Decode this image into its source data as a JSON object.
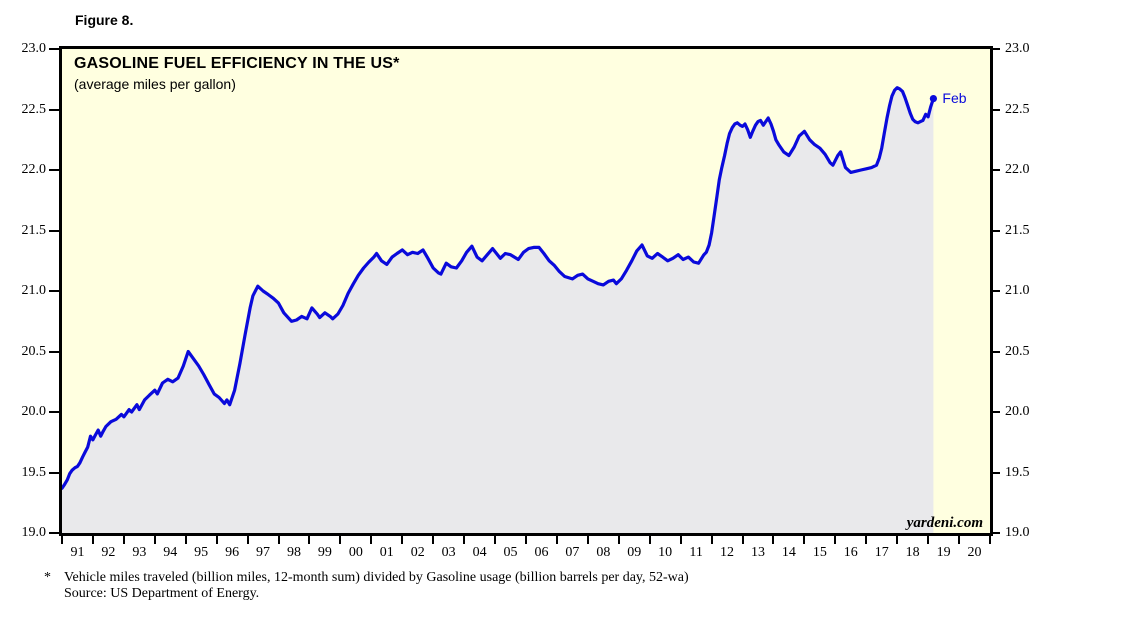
{
  "page": {
    "figure_label": "Figure 8."
  },
  "chart_data": {
    "type": "area",
    "title": "GASOLINE FUEL EFFICIENCY IN THE US*",
    "subtitle": "(average miles per gallon)",
    "watermark": "yardeni.com",
    "end_label": "Feb",
    "grid": false,
    "legend_position": "none",
    "xlabel": "",
    "ylabel": "",
    "ylim": [
      19.0,
      23.0
    ],
    "xlim": [
      1991,
      2021
    ],
    "ytick_values": [
      23.0,
      22.5,
      22.0,
      21.5,
      21.0,
      20.5,
      20.0,
      19.5,
      19.0
    ],
    "ytick_labels": [
      "23.0",
      "22.5",
      "22.0",
      "21.5",
      "21.0",
      "20.5",
      "20.0",
      "19.5",
      "19.0"
    ],
    "xtick_labels": [
      "91",
      "92",
      "93",
      "94",
      "95",
      "96",
      "97",
      "98",
      "99",
      "00",
      "01",
      "02",
      "03",
      "04",
      "05",
      "06",
      "07",
      "08",
      "09",
      "10",
      "11",
      "12",
      "13",
      "14",
      "15",
      "16",
      "17",
      "18",
      "19",
      "20"
    ],
    "colors": {
      "line": "#0a0adb",
      "fill": "#e9e9eb",
      "plot_bg": "#FFFFE0",
      "axis": "#000000",
      "end_label": "#0a0adb"
    },
    "series": [
      {
        "name": "Gasoline fuel efficiency (average miles per gallon)",
        "points": [
          [
            1991.0,
            19.37
          ],
          [
            1991.08,
            19.4
          ],
          [
            1991.17,
            19.44
          ],
          [
            1991.25,
            19.49
          ],
          [
            1991.33,
            19.52
          ],
          [
            1991.42,
            19.54
          ],
          [
            1991.5,
            19.55
          ],
          [
            1991.58,
            19.58
          ],
          [
            1991.67,
            19.63
          ],
          [
            1991.75,
            19.67
          ],
          [
            1991.83,
            19.71
          ],
          [
            1991.92,
            19.8
          ],
          [
            1992.0,
            19.77
          ],
          [
            1992.08,
            19.81
          ],
          [
            1992.17,
            19.85
          ],
          [
            1992.25,
            19.8
          ],
          [
            1992.33,
            19.84
          ],
          [
            1992.42,
            19.88
          ],
          [
            1992.58,
            19.92
          ],
          [
            1992.75,
            19.94
          ],
          [
            1992.92,
            19.98
          ],
          [
            1993.0,
            19.96
          ],
          [
            1993.17,
            20.02
          ],
          [
            1993.25,
            20.0
          ],
          [
            1993.42,
            20.06
          ],
          [
            1993.5,
            20.02
          ],
          [
            1993.67,
            20.1
          ],
          [
            1993.83,
            20.14
          ],
          [
            1994.0,
            20.18
          ],
          [
            1994.08,
            20.15
          ],
          [
            1994.25,
            20.24
          ],
          [
            1994.42,
            20.27
          ],
          [
            1994.58,
            20.25
          ],
          [
            1994.75,
            20.28
          ],
          [
            1994.92,
            20.38
          ],
          [
            1995.08,
            20.5
          ],
          [
            1995.25,
            20.44
          ],
          [
            1995.42,
            20.38
          ],
          [
            1995.58,
            20.31
          ],
          [
            1995.75,
            20.23
          ],
          [
            1995.92,
            20.15
          ],
          [
            1996.08,
            20.12
          ],
          [
            1996.25,
            20.07
          ],
          [
            1996.33,
            20.1
          ],
          [
            1996.42,
            20.06
          ],
          [
            1996.58,
            20.18
          ],
          [
            1996.75,
            20.4
          ],
          [
            1996.92,
            20.64
          ],
          [
            1997.08,
            20.86
          ],
          [
            1997.17,
            20.96
          ],
          [
            1997.33,
            21.04
          ],
          [
            1997.5,
            21.0
          ],
          [
            1997.67,
            20.97
          ],
          [
            1997.83,
            20.94
          ],
          [
            1998.0,
            20.9
          ],
          [
            1998.17,
            20.82
          ],
          [
            1998.42,
            20.75
          ],
          [
            1998.58,
            20.76
          ],
          [
            1998.75,
            20.79
          ],
          [
            1998.92,
            20.77
          ],
          [
            1999.08,
            20.86
          ],
          [
            1999.25,
            20.81
          ],
          [
            1999.33,
            20.78
          ],
          [
            1999.5,
            20.82
          ],
          [
            1999.67,
            20.79
          ],
          [
            1999.75,
            20.77
          ],
          [
            1999.92,
            20.81
          ],
          [
            2000.08,
            20.88
          ],
          [
            2000.25,
            20.98
          ],
          [
            2000.42,
            21.06
          ],
          [
            2000.58,
            21.13
          ],
          [
            2000.75,
            21.19
          ],
          [
            2000.92,
            21.24
          ],
          [
            2001.08,
            21.28
          ],
          [
            2001.17,
            21.31
          ],
          [
            2001.33,
            21.25
          ],
          [
            2001.5,
            21.22
          ],
          [
            2001.67,
            21.28
          ],
          [
            2001.83,
            21.31
          ],
          [
            2002.0,
            21.34
          ],
          [
            2002.17,
            21.3
          ],
          [
            2002.33,
            21.32
          ],
          [
            2002.5,
            21.31
          ],
          [
            2002.67,
            21.34
          ],
          [
            2002.83,
            21.27
          ],
          [
            2003.0,
            21.19
          ],
          [
            2003.17,
            21.15
          ],
          [
            2003.25,
            21.14
          ],
          [
            2003.42,
            21.23
          ],
          [
            2003.58,
            21.2
          ],
          [
            2003.75,
            21.19
          ],
          [
            2003.92,
            21.25
          ],
          [
            2004.08,
            21.32
          ],
          [
            2004.25,
            21.37
          ],
          [
            2004.42,
            21.28
          ],
          [
            2004.58,
            21.25
          ],
          [
            2004.75,
            21.3
          ],
          [
            2004.92,
            21.35
          ],
          [
            2005.08,
            21.3
          ],
          [
            2005.17,
            21.27
          ],
          [
            2005.33,
            21.31
          ],
          [
            2005.5,
            21.3
          ],
          [
            2005.75,
            21.26
          ],
          [
            2005.92,
            21.32
          ],
          [
            2006.08,
            21.35
          ],
          [
            2006.25,
            21.36
          ],
          [
            2006.42,
            21.36
          ],
          [
            2006.58,
            21.31
          ],
          [
            2006.75,
            21.25
          ],
          [
            2006.92,
            21.21
          ],
          [
            2007.08,
            21.16
          ],
          [
            2007.25,
            21.12
          ],
          [
            2007.5,
            21.1
          ],
          [
            2007.67,
            21.13
          ],
          [
            2007.83,
            21.14
          ],
          [
            2008.0,
            21.1
          ],
          [
            2008.17,
            21.08
          ],
          [
            2008.33,
            21.06
          ],
          [
            2008.5,
            21.05
          ],
          [
            2008.67,
            21.08
          ],
          [
            2008.83,
            21.09
          ],
          [
            2008.92,
            21.06
          ],
          [
            2009.08,
            21.1
          ],
          [
            2009.25,
            21.17
          ],
          [
            2009.42,
            21.25
          ],
          [
            2009.58,
            21.33
          ],
          [
            2009.75,
            21.38
          ],
          [
            2009.92,
            21.29
          ],
          [
            2010.08,
            21.27
          ],
          [
            2010.25,
            21.31
          ],
          [
            2010.42,
            21.28
          ],
          [
            2010.58,
            21.25
          ],
          [
            2010.75,
            21.27
          ],
          [
            2010.92,
            21.3
          ],
          [
            2011.08,
            21.26
          ],
          [
            2011.25,
            21.28
          ],
          [
            2011.42,
            21.24
          ],
          [
            2011.58,
            21.23
          ],
          [
            2011.75,
            21.3
          ],
          [
            2011.83,
            21.32
          ],
          [
            2011.92,
            21.38
          ],
          [
            2012.0,
            21.48
          ],
          [
            2012.08,
            21.62
          ],
          [
            2012.17,
            21.78
          ],
          [
            2012.25,
            21.92
          ],
          [
            2012.33,
            22.02
          ],
          [
            2012.42,
            22.12
          ],
          [
            2012.5,
            22.22
          ],
          [
            2012.58,
            22.3
          ],
          [
            2012.67,
            22.35
          ],
          [
            2012.75,
            22.38
          ],
          [
            2012.83,
            22.39
          ],
          [
            2012.92,
            22.37
          ],
          [
            2013.0,
            22.36
          ],
          [
            2013.08,
            22.38
          ],
          [
            2013.17,
            22.33
          ],
          [
            2013.25,
            22.27
          ],
          [
            2013.33,
            22.32
          ],
          [
            2013.42,
            22.37
          ],
          [
            2013.5,
            22.4
          ],
          [
            2013.58,
            22.41
          ],
          [
            2013.67,
            22.37
          ],
          [
            2013.75,
            22.4
          ],
          [
            2013.83,
            22.43
          ],
          [
            2013.92,
            22.38
          ],
          [
            2014.0,
            22.32
          ],
          [
            2014.08,
            22.25
          ],
          [
            2014.17,
            22.21
          ],
          [
            2014.33,
            22.15
          ],
          [
            2014.5,
            22.12
          ],
          [
            2014.67,
            22.19
          ],
          [
            2014.83,
            22.28
          ],
          [
            2015.0,
            22.32
          ],
          [
            2015.17,
            22.25
          ],
          [
            2015.33,
            22.21
          ],
          [
            2015.5,
            22.18
          ],
          [
            2015.67,
            22.13
          ],
          [
            2015.83,
            22.06
          ],
          [
            2015.92,
            22.04
          ],
          [
            2016.08,
            22.12
          ],
          [
            2016.17,
            22.15
          ],
          [
            2016.33,
            22.02
          ],
          [
            2016.5,
            21.98
          ],
          [
            2016.67,
            21.99
          ],
          [
            2016.83,
            22.0
          ],
          [
            2017.0,
            22.01
          ],
          [
            2017.17,
            22.02
          ],
          [
            2017.33,
            22.04
          ],
          [
            2017.42,
            22.1
          ],
          [
            2017.5,
            22.18
          ],
          [
            2017.58,
            22.3
          ],
          [
            2017.67,
            22.43
          ],
          [
            2017.75,
            22.53
          ],
          [
            2017.83,
            22.61
          ],
          [
            2017.92,
            22.66
          ],
          [
            2018.0,
            22.68
          ],
          [
            2018.08,
            22.67
          ],
          [
            2018.17,
            22.65
          ],
          [
            2018.25,
            22.6
          ],
          [
            2018.33,
            22.54
          ],
          [
            2018.42,
            22.47
          ],
          [
            2018.5,
            22.42
          ],
          [
            2018.58,
            22.4
          ],
          [
            2018.67,
            22.39
          ],
          [
            2018.75,
            22.4
          ],
          [
            2018.83,
            22.41
          ],
          [
            2018.92,
            22.46
          ],
          [
            2019.0,
            22.44
          ],
          [
            2019.08,
            22.52
          ],
          [
            2019.17,
            22.59
          ]
        ]
      }
    ]
  },
  "footnote": {
    "marker": "*",
    "line1": "Vehicle miles traveled (billion miles, 12-month sum) divided by Gasoline usage (billion barrels per day, 52-wa)",
    "line2": "Source: US Department of Energy."
  }
}
